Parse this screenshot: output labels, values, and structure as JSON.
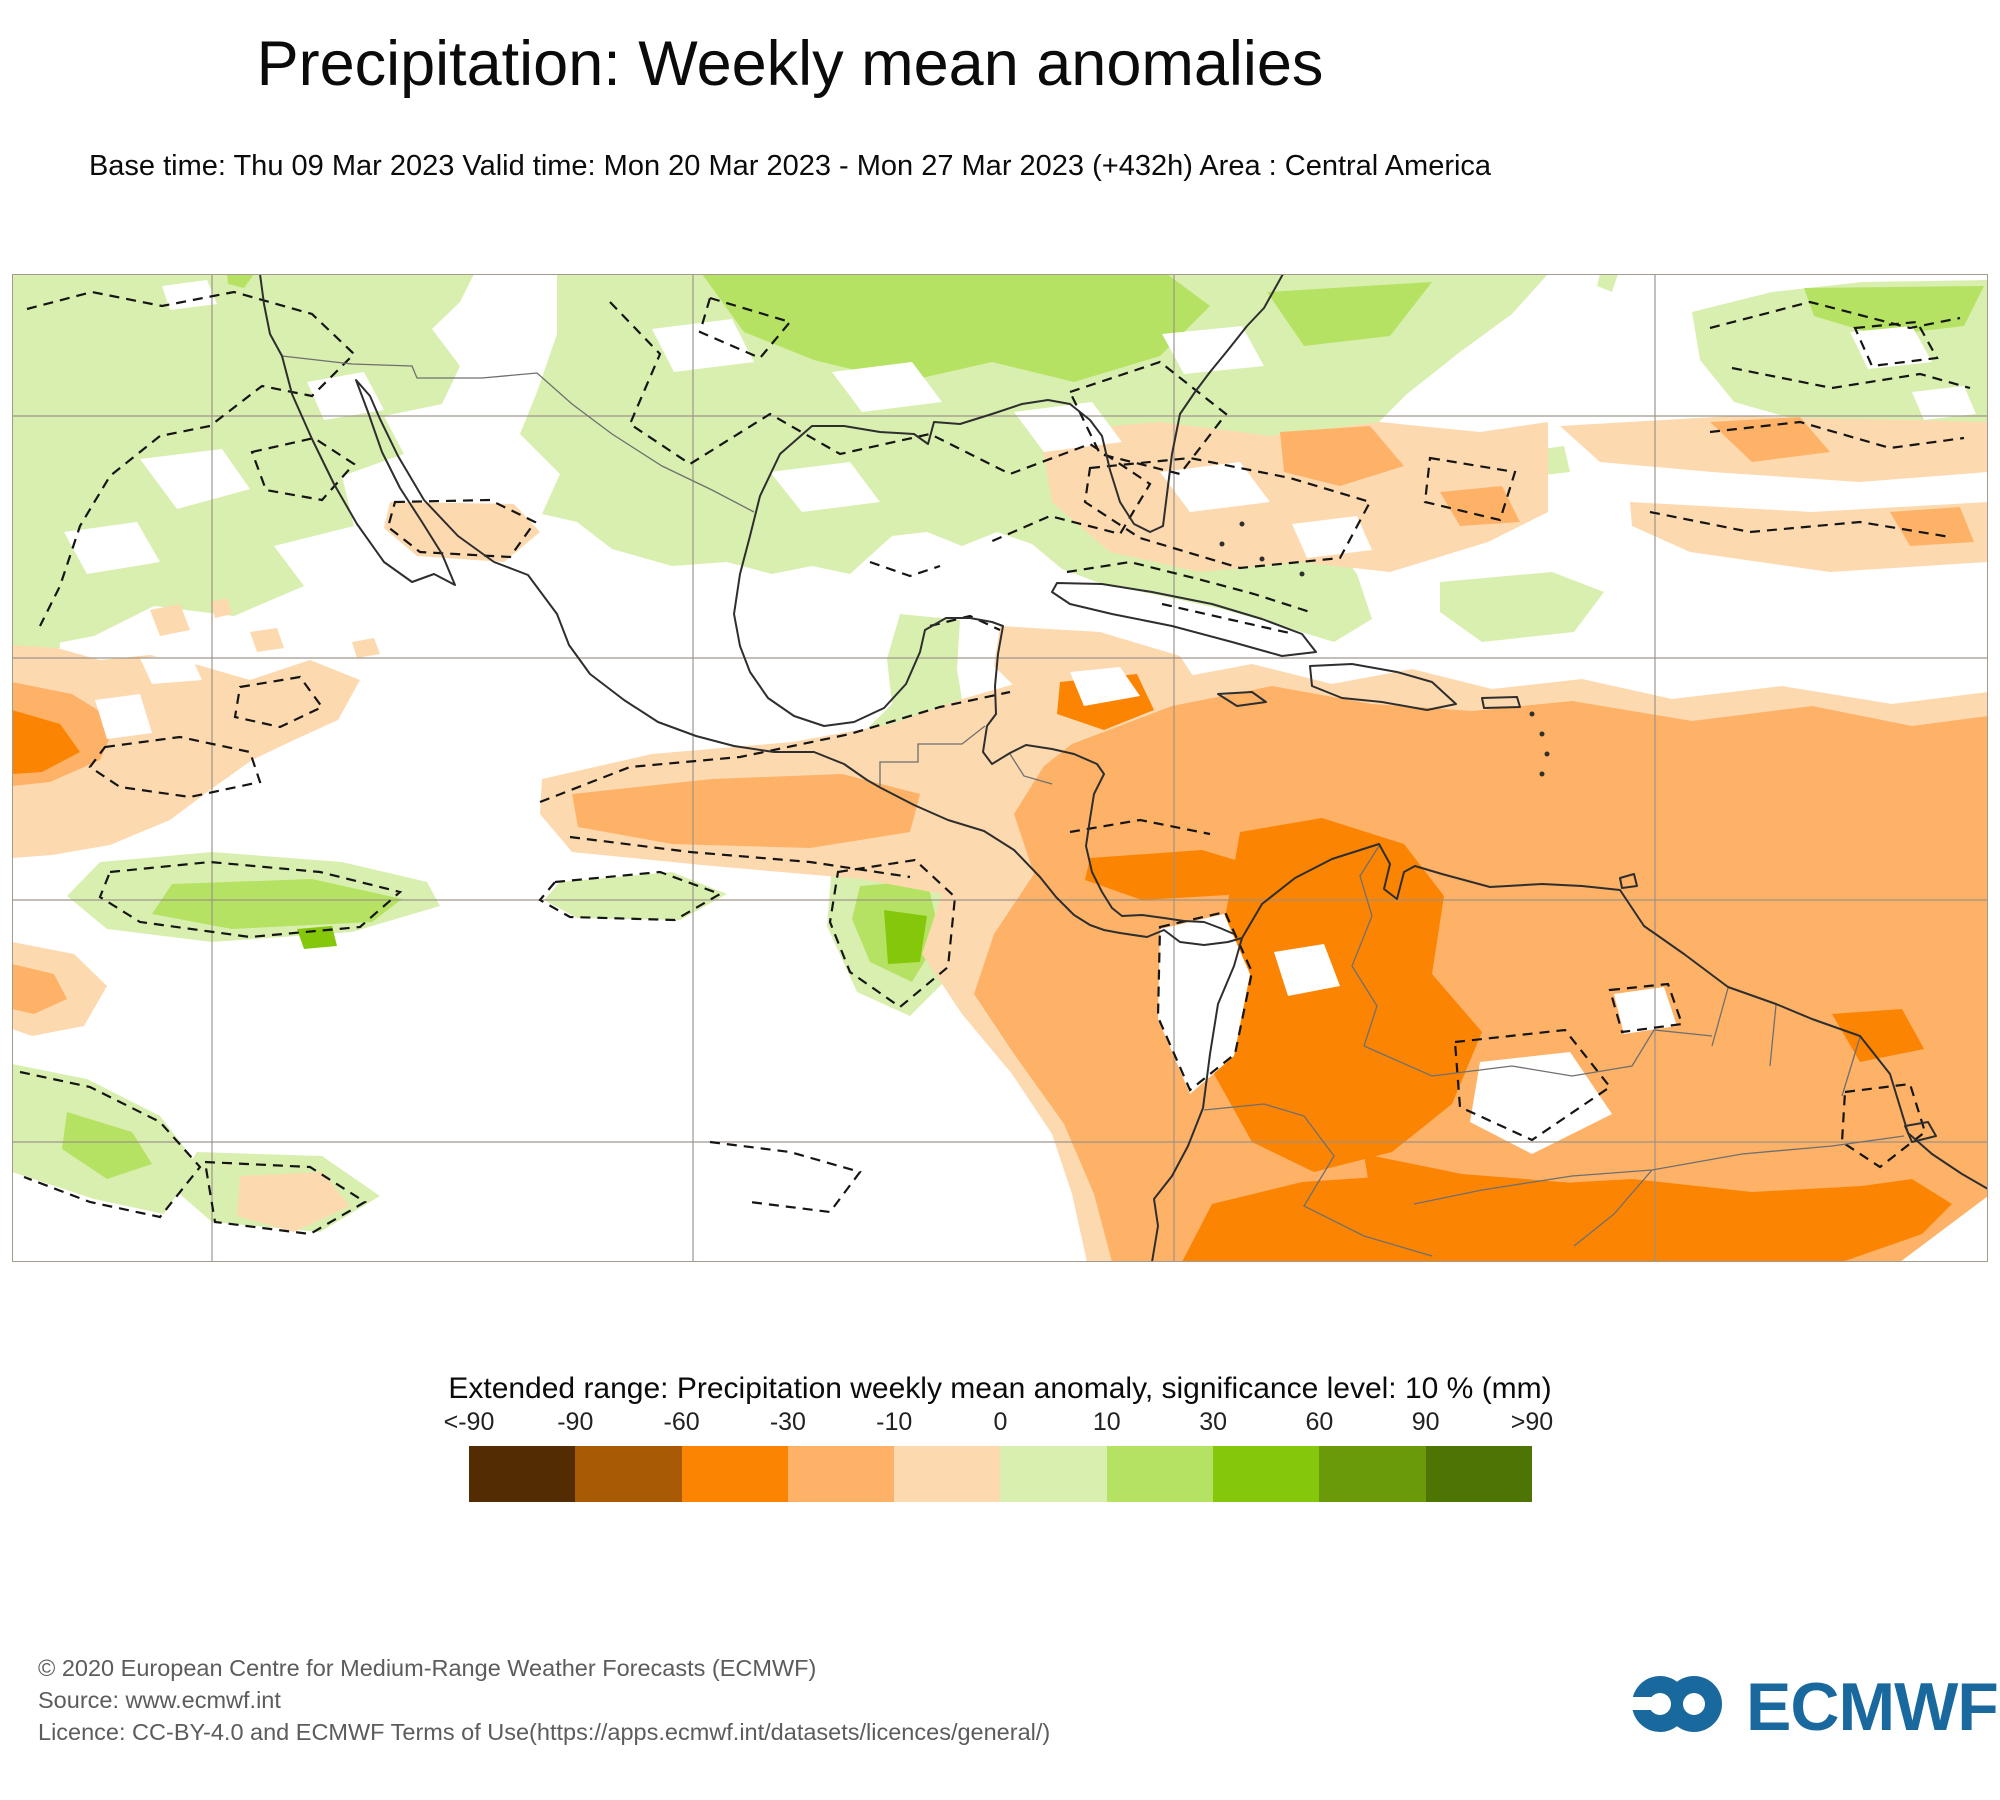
{
  "header": {
    "title": "Precipitation: Weekly mean anomalies",
    "subtitle": "Base time: Thu 09 Mar 2023 Valid time: Mon 20 Mar 2023 - Mon 27 Mar 2023 (+432h) Area : Central America"
  },
  "legend": {
    "title": "Extended range: Precipitation weekly mean anomaly, significance level: 10 % (mm)",
    "ticks": [
      "<-90",
      "-90",
      "-60",
      "-30",
      "-10",
      "0",
      "10",
      "30",
      "60",
      "90",
      ">90"
    ],
    "colors": [
      "#532C03",
      "#A85B04",
      "#FC8403",
      "#FDB268",
      "#FDD9AF",
      "#D9EFB0",
      "#B5E263",
      "#85C80B",
      "#6A9A0A",
      "#4E7504"
    ]
  },
  "map": {
    "background": "#FFFFFF",
    "grid_color": "#9A9186",
    "coast_color": "#2E2E2E",
    "border_color": "#6F6F6F",
    "contour_color": "#151515",
    "anomaly_colors": {
      "strong_negative": "#FC8403",
      "medium_negative": "#FDB268",
      "weak_negative": "#FDD9AF",
      "weak_positive": "#D9EFB0",
      "medium_positive": "#B5E263",
      "strong_positive": "#85C80B"
    }
  },
  "footer": {
    "lines": [
      "© 2020 European Centre for Medium-Range Weather Forecasts (ECMWF)",
      "Source: www.ecmwf.int",
      "Licence: CC-BY-4.0 and ECMWF Terms of Use(https://apps.ecmwf.int/datasets/licences/general/)"
    ],
    "logo_text": "ECMWF",
    "logo_color": "#19699F"
  }
}
